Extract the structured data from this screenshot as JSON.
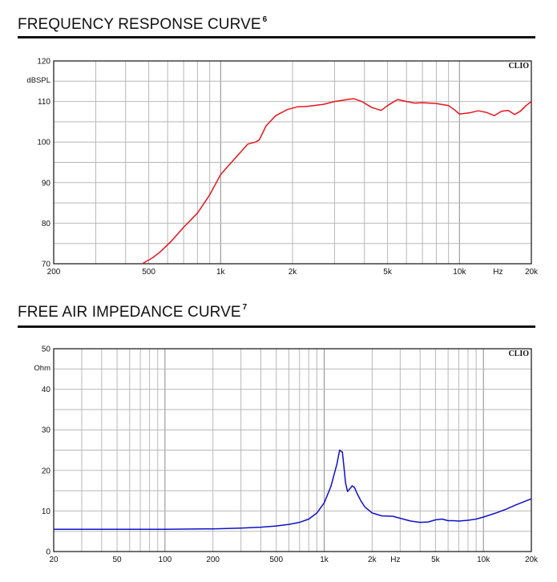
{
  "charts": [
    {
      "title": "FREQUENCY RESPONSE CURVE",
      "footnote": "6",
      "brand": "CLIO"
    },
    {
      "title": "FREE AIR IMPEDANCE CURVE",
      "footnote": "7",
      "brand": "CLIO"
    }
  ],
  "chart_data": [
    {
      "type": "line",
      "title": "FREQUENCY RESPONSE CURVE",
      "xscale": "log",
      "xlim": [
        200,
        20000
      ],
      "ylim": [
        70,
        120
      ],
      "xlabel": "Hz",
      "ylabel": "dBSPL",
      "grid": true,
      "legend": "none",
      "color": "#e8141c",
      "x_ticks": [
        {
          "v": 200,
          "label": "200"
        },
        {
          "v": 500,
          "label": "500"
        },
        {
          "v": 1000,
          "label": "1k"
        },
        {
          "v": 2000,
          "label": "2k"
        },
        {
          "v": 5000,
          "label": "5k"
        },
        {
          "v": 10000,
          "label": "10k"
        },
        {
          "v": 20000,
          "label": "20k"
        }
      ],
      "y_ticks": [
        "70",
        "80",
        "90",
        "100",
        "110",
        "120"
      ],
      "series": [
        {
          "x": [
            470,
            520,
            560,
            620,
            700,
            800,
            900,
            1000,
            1150,
            1300,
            1400,
            1450,
            1550,
            1700,
            1900,
            2100,
            2300,
            2700,
            3000,
            3400,
            3600,
            3900,
            4300,
            4700,
            5000,
            5500,
            6000,
            6500,
            7000,
            8000,
            9000,
            9500,
            10000,
            11000,
            12000,
            13000,
            14000,
            15000,
            16000,
            17000,
            18000,
            19000,
            20000
          ],
          "y": [
            70,
            71.5,
            73,
            75.5,
            79,
            82.5,
            87,
            92,
            96,
            99.5,
            100,
            100.5,
            104,
            106.5,
            108,
            108.7,
            108.8,
            109.3,
            110,
            110.5,
            110.7,
            110,
            108.5,
            107.8,
            109,
            110.5,
            110,
            109.6,
            109.7,
            109.5,
            109,
            108,
            106.9,
            107.2,
            107.7,
            107.3,
            106.5,
            107.6,
            107.8,
            106.8,
            107.6,
            109,
            110
          ]
        }
      ]
    },
    {
      "type": "line",
      "title": "FREE AIR IMPEDANCE CURVE",
      "xscale": "log",
      "xlim": [
        20,
        20000
      ],
      "ylim": [
        0,
        50
      ],
      "xlabel": "Hz",
      "ylabel": "Ohm",
      "grid": true,
      "legend": "none",
      "color": "#1010c8",
      "x_ticks": [
        {
          "v": 20,
          "label": "20"
        },
        {
          "v": 50,
          "label": "50"
        },
        {
          "v": 100,
          "label": "100"
        },
        {
          "v": 200,
          "label": "200"
        },
        {
          "v": 500,
          "label": "500"
        },
        {
          "v": 1000,
          "label": "1k"
        },
        {
          "v": 2000,
          "label": "2k"
        },
        {
          "v": 5000,
          "label": "5k"
        },
        {
          "v": 10000,
          "label": "10k"
        },
        {
          "v": 20000,
          "label": "20k"
        }
      ],
      "y_ticks": [
        "0",
        "10",
        "20",
        "30",
        "40",
        "50"
      ],
      "series": [
        {
          "x": [
            20,
            50,
            100,
            200,
            300,
            400,
            500,
            600,
            700,
            800,
            900,
            1000,
            1100,
            1200,
            1250,
            1300,
            1330,
            1360,
            1400,
            1450,
            1500,
            1550,
            1600,
            1700,
            1800,
            2000,
            2300,
            2700,
            3000,
            3500,
            4000,
            4500,
            5000,
            5500,
            6000,
            6500,
            7000,
            8000,
            9000,
            10000,
            12000,
            14000,
            16000,
            18000,
            20000
          ],
          "y": [
            5.5,
            5.5,
            5.5,
            5.6,
            5.8,
            6.0,
            6.3,
            6.7,
            7.2,
            8.0,
            9.5,
            12.0,
            16.0,
            21.5,
            25.0,
            24.5,
            21.0,
            17.0,
            14.8,
            15.5,
            16.2,
            15.8,
            14.5,
            12.5,
            11.0,
            9.5,
            8.8,
            8.7,
            8.2,
            7.5,
            7.2,
            7.3,
            7.8,
            8.0,
            7.6,
            7.6,
            7.5,
            7.7,
            8.0,
            8.5,
            9.5,
            10.5,
            11.5,
            12.3,
            13.0
          ]
        }
      ]
    }
  ]
}
